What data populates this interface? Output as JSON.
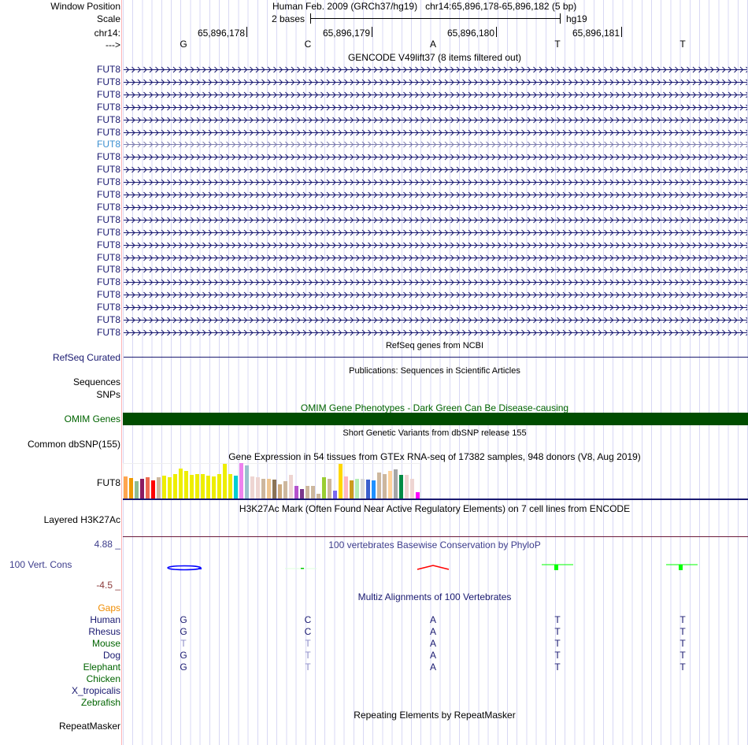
{
  "header": {
    "window_position_label": "Window Position",
    "scale_label": "Scale",
    "chrom_label": "chr14:",
    "strand_label": "--->",
    "assembly": "Human Feb. 2009 (GRCh37/hg19)",
    "position": "chr14:65,896,178-65,896,182 (5 bp)",
    "scale_text": "2 bases",
    "db": "hg19",
    "coords": [
      "65,896,178",
      "65,896,179",
      "65,896,180",
      "65,896,181"
    ],
    "bases": [
      "G",
      "C",
      "A",
      "T",
      "T"
    ]
  },
  "gencode": {
    "title": "GENCODE V49lift37 (8 items filtered out)",
    "gene": "FUT8",
    "row_count": 22,
    "highlight_row": 6
  },
  "refseq": {
    "title": "RefSeq genes from NCBI",
    "label": "RefSeq Curated"
  },
  "publications": {
    "title": "Publications: Sequences in Scientific Articles",
    "label1": "Sequences",
    "label2": "SNPs"
  },
  "omim": {
    "title": "OMIM Gene Phenotypes - Dark Green Can Be Disease-causing",
    "label": "OMIM Genes",
    "color": "#004d00"
  },
  "dbsnp": {
    "title": "Short Genetic Variants from dbSNP release 155",
    "label": "Common dbSNP(155)"
  },
  "gtex": {
    "title": "Gene Expression in 54 tissues from GTEx RNA-seq of 17382 samples, 948 donors (V8, Aug 2019)",
    "label": "FUT8",
    "values": [
      83,
      78,
      65,
      74,
      80,
      69,
      80,
      86,
      80,
      92,
      113,
      104,
      89,
      92,
      92,
      86,
      83,
      92,
      131,
      92,
      86,
      134,
      125,
      83,
      80,
      74,
      74,
      71,
      53,
      65,
      89,
      47,
      35,
      47,
      47,
      17,
      80,
      74,
      29,
      131,
      83,
      68,
      74,
      74,
      71,
      68,
      98,
      92,
      104,
      110,
      89,
      89,
      74,
      23
    ],
    "colors": [
      "#FFA54F",
      "#EE9A00",
      "#8FBC8F",
      "#8B1C62",
      "#EE6A50",
      "#FF0000",
      "#CDB79E",
      "#EEEE00",
      "#EEEE00",
      "#EEEE00",
      "#EEEE00",
      "#EEEE00",
      "#EEEE00",
      "#EEEE00",
      "#EEEE00",
      "#EEEE00",
      "#EEEE00",
      "#EEEE00",
      "#EEEE00",
      "#EEEE00",
      "#00CED1",
      "#EE82EE",
      "#9AC0CD",
      "#EED5D2",
      "#EED5D2",
      "#CDB79E",
      "#EEC591",
      "#8B7355",
      "#CDAA7D",
      "#CDB79E",
      "#EED5D2",
      "#B452CD",
      "#7A378B",
      "#CDB79E",
      "#CDB79E",
      "#CDB79E",
      "#9ACD32",
      "#CDB79E",
      "#7B68EE",
      "#FFD700",
      "#FFB6C1",
      "#CD9B1D",
      "#B4EEB4",
      "#D9D9D9",
      "#3A5FCD",
      "#1E90FF",
      "#CDB79E",
      "#CDB79E",
      "#FFD39B",
      "#A6A6A6",
      "#008B45",
      "#EED5D2",
      "#EED5D2",
      "#FF00FF"
    ]
  },
  "h3k27ac": {
    "title": "H3K27Ac Mark (Often Found Near Active Regulatory Elements) on 7 cell lines from ENCODE",
    "label": "Layered H3K27Ac"
  },
  "phylop": {
    "title": "100 vertebrates Basewise Conservation by PhyloP",
    "label": "100 Vert. Cons",
    "max": "4.88 _",
    "min": "-4.5 _"
  },
  "multiz": {
    "title": "Multiz Alignments of 100 Vertebrates",
    "gaps_label": "Gaps",
    "species": [
      {
        "name": "Human",
        "color": "#191970",
        "bases": [
          "G",
          "C",
          "A",
          "T",
          "T"
        ],
        "mismatch": [
          0,
          0,
          0,
          0,
          0
        ]
      },
      {
        "name": "Rhesus",
        "color": "#191970",
        "bases": [
          "G",
          "C",
          "A",
          "T",
          "T"
        ],
        "mismatch": [
          0,
          0,
          0,
          0,
          0
        ]
      },
      {
        "name": "Mouse",
        "color": "#006400",
        "bases": [
          "T",
          "T",
          "A",
          "T",
          "T"
        ],
        "mismatch": [
          1,
          1,
          0,
          0,
          0
        ]
      },
      {
        "name": "Dog",
        "color": "#191970",
        "bases": [
          "G",
          "T",
          "A",
          "T",
          "T"
        ],
        "mismatch": [
          0,
          1,
          0,
          0,
          0
        ]
      },
      {
        "name": "Elephant",
        "color": "#006400",
        "bases": [
          "G",
          "T",
          "A",
          "T",
          "T"
        ],
        "mismatch": [
          0,
          1,
          0,
          0,
          0
        ]
      },
      {
        "name": "Chicken",
        "color": "#006400",
        "bases": [],
        "mismatch": []
      },
      {
        "name": "X_tropicalis",
        "color": "#191970",
        "bases": [],
        "mismatch": []
      },
      {
        "name": "Zebrafish",
        "color": "#006400",
        "bases": [],
        "mismatch": []
      }
    ]
  },
  "repeatmasker": {
    "title": "Repeating Elements by RepeatMasker",
    "label": "RepeatMasker"
  }
}
